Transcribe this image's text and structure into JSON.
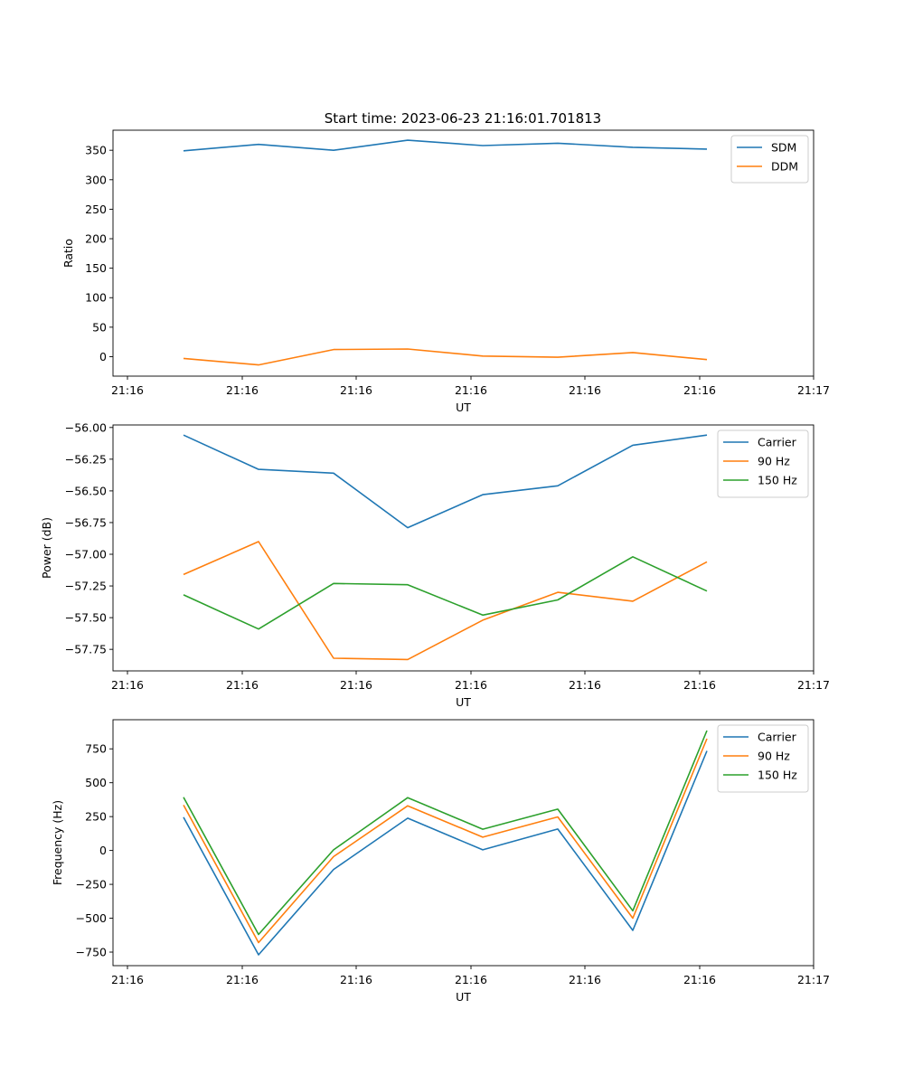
{
  "figure": {
    "title": "Start time: 2023-06-23 21:16:01.701813"
  },
  "colors": {
    "c0": "#1f77b4",
    "c1": "#ff7f0e",
    "c2": "#2ca02c"
  },
  "chart_data": [
    {
      "type": "line",
      "title": "Start time: 2023-06-23 21:16:01.701813",
      "xlabel": "UT",
      "ylabel": "Ratio",
      "x_tick_labels": [
        "21:16",
        "21:16",
        "21:16",
        "21:16",
        "21:16",
        "21:16",
        "21:17"
      ],
      "y_ticks": [
        0,
        50,
        100,
        150,
        200,
        250,
        300,
        350
      ],
      "y_tick_labels": [
        "0",
        "50",
        "100",
        "150",
        "200",
        "250",
        "300",
        "350"
      ],
      "ylim": [
        -33,
        384
      ],
      "legend": "top-right",
      "grid": false,
      "series": [
        {
          "name": "SDM",
          "color": "#1f77b4",
          "values": [
            349,
            360,
            350,
            367,
            358,
            362,
            355,
            352
          ]
        },
        {
          "name": "DDM",
          "color": "#ff7f0e",
          "values": [
            -3,
            -14,
            12,
            13,
            1,
            -1,
            7,
            -5
          ]
        }
      ]
    },
    {
      "type": "line",
      "xlabel": "UT",
      "ylabel": "Power (dB)",
      "x_tick_labels": [
        "21:16",
        "21:16",
        "21:16",
        "21:16",
        "21:16",
        "21:16",
        "21:17"
      ],
      "y_ticks": [
        -57.75,
        -57.5,
        -57.25,
        -57.0,
        -56.75,
        -56.5,
        -56.25,
        -56.0
      ],
      "y_tick_labels": [
        "−57.75",
        "−57.50",
        "−57.25",
        "−57.00",
        "−56.75",
        "−56.50",
        "−56.25",
        "−56.00"
      ],
      "ylim": [
        -57.92,
        -55.98
      ],
      "legend": "top-right",
      "grid": false,
      "series": [
        {
          "name": "Carrier",
          "color": "#1f77b4",
          "values": [
            -56.06,
            -56.33,
            -56.36,
            -56.79,
            -56.53,
            -56.46,
            -56.14,
            -56.06
          ]
        },
        {
          "name": "90 Hz",
          "color": "#ff7f0e",
          "values": [
            -57.16,
            -56.9,
            -57.82,
            -57.83,
            -57.52,
            -57.3,
            -57.37,
            -57.06
          ]
        },
        {
          "name": "150 Hz",
          "color": "#2ca02c",
          "values": [
            -57.32,
            -57.59,
            -57.23,
            -57.24,
            -57.48,
            -57.36,
            -57.02,
            -57.29
          ]
        }
      ]
    },
    {
      "type": "line",
      "xlabel": "UT",
      "ylabel": "Frequency (Hz)",
      "x_tick_labels": [
        "21:16",
        "21:16",
        "21:16",
        "21:16",
        "21:16",
        "21:16",
        "21:17"
      ],
      "y_ticks": [
        -750,
        -500,
        -250,
        0,
        250,
        500,
        750
      ],
      "y_tick_labels": [
        "−750",
        "−500",
        "−250",
        "0",
        "250",
        "500",
        "750"
      ],
      "ylim": [
        -850,
        965
      ],
      "legend": "top-right",
      "grid": false,
      "series": [
        {
          "name": "Carrier",
          "color": "#1f77b4",
          "values": [
            245,
            -770,
            -140,
            238,
            5,
            158,
            -590,
            735
          ]
        },
        {
          "name": "90 Hz",
          "color": "#ff7f0e",
          "values": [
            335,
            -680,
            -45,
            330,
            98,
            248,
            -500,
            825
          ]
        },
        {
          "name": "150 Hz",
          "color": "#2ca02c",
          "values": [
            393,
            -620,
            5,
            390,
            157,
            305,
            -445,
            885
          ]
        }
      ]
    }
  ]
}
